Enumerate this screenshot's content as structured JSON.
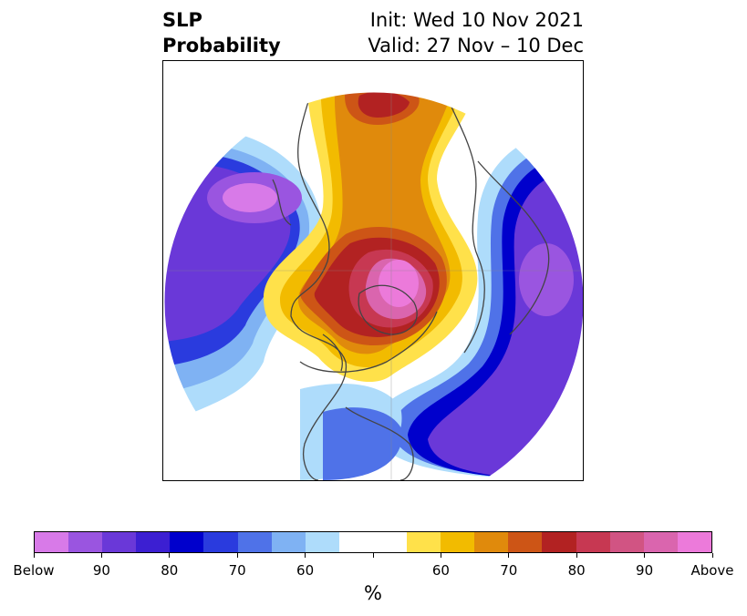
{
  "title": {
    "left_line1": "SLP",
    "left_line2": "Probability",
    "right_line1": "Init: Wed 10 Nov 2021",
    "right_line2": "Valid: 27 Nov – 10 Dec"
  },
  "colorbar": {
    "unit_label": "%",
    "colors": [
      "#d87ae8",
      "#9a55e0",
      "#6a38d8",
      "#3c1fd2",
      "#0000cc",
      "#2a3bde",
      "#4f72e8",
      "#7fb2f3",
      "#aedcfb",
      "#ffffff",
      "#ffffff",
      "#ffe14a",
      "#f2bb00",
      "#e08a0c",
      "#cd5516",
      "#b22222",
      "#c73852",
      "#d15483",
      "#da65ae",
      "#ec7ada"
    ],
    "tick_labels": [
      "Below",
      "90",
      "80",
      "70",
      "60",
      "",
      "60",
      "70",
      "80",
      "90",
      "Above"
    ]
  },
  "legend_colors": {
    "below_extreme": "#d87ae8",
    "below_strong": "#6a38d8",
    "below_mid": "#0000cc",
    "below_light": "#aedcfb",
    "neutral": "#ffffff",
    "above_light": "#ffe14a",
    "above_mid": "#e08a0c",
    "above_strong": "#b22222",
    "above_extreme": "#ec7ada",
    "coastline": "#444444"
  }
}
